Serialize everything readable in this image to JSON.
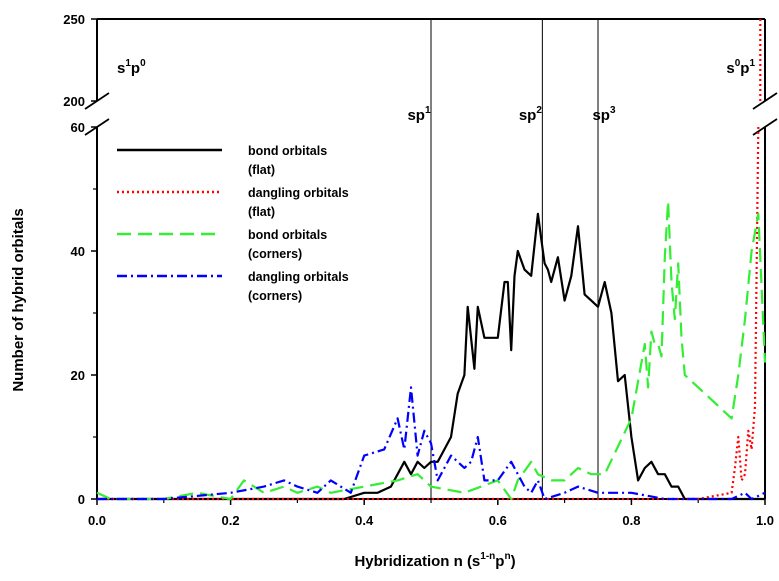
{
  "chart_data": {
    "type": "line",
    "title": "",
    "xlabel": {
      "base": "Hybridization n (s",
      "sup1": "1-n",
      "mid": "p",
      "sup2": "n",
      "end": ")"
    },
    "ylabel": "Number of hybrid orbitals",
    "xlim": [
      0,
      1
    ],
    "ylim_lower": [
      0,
      60
    ],
    "ylim_upper": [
      200,
      250
    ],
    "axis_break": true,
    "x_ticks": [
      "0.0",
      "0.2",
      "0.4",
      "0.6",
      "0.8",
      "1.0"
    ],
    "y_ticks_lower": [
      "0",
      "20",
      "40",
      "60"
    ],
    "y_ticks_upper": [
      "200",
      "250"
    ],
    "legend_position": "upper-left",
    "annotations": [
      {
        "name": "s1p0",
        "base1": "s",
        "sup1": "1",
        "base2": "p",
        "sup2": "0"
      },
      {
        "name": "s0p1",
        "base1": "s",
        "sup1": "0",
        "base2": "p",
        "sup2": "1"
      },
      {
        "name": "sp1",
        "base1": "sp",
        "sup1": "1"
      },
      {
        "name": "sp2",
        "base1": "sp",
        "sup1": "2"
      },
      {
        "name": "sp3",
        "base1": "sp",
        "sup1": "3"
      }
    ],
    "vertical_lines": [
      0.5,
      0.6667,
      0.75
    ],
    "series": [
      {
        "name": "bond orbitals (flat)",
        "label_line1": "bond orbitals",
        "label_line2": "(flat)",
        "color": "#000000",
        "dash": "solid",
        "x": [
          0,
          0.1,
          0.2,
          0.3,
          0.37,
          0.4,
          0.42,
          0.44,
          0.46,
          0.47,
          0.48,
          0.49,
          0.5,
          0.51,
          0.52,
          0.53,
          0.54,
          0.55,
          0.555,
          0.565,
          0.57,
          0.58,
          0.59,
          0.6,
          0.61,
          0.615,
          0.62,
          0.625,
          0.63,
          0.64,
          0.65,
          0.66,
          0.665,
          0.67,
          0.675,
          0.68,
          0.69,
          0.7,
          0.71,
          0.72,
          0.73,
          0.74,
          0.75,
          0.76,
          0.77,
          0.78,
          0.79,
          0.8,
          0.81,
          0.82,
          0.83,
          0.84,
          0.85,
          0.86,
          0.87,
          0.88,
          0.89,
          0.9,
          0.91,
          1.0
        ],
        "y": [
          0,
          0,
          0,
          0,
          0,
          1,
          1,
          2,
          6,
          4,
          6,
          5,
          6,
          6,
          8,
          10,
          17,
          20,
          31,
          21,
          31,
          26,
          26,
          26,
          35,
          35,
          24,
          36,
          40,
          37,
          36,
          46,
          42,
          38,
          37,
          35,
          39,
          32,
          36,
          44,
          33,
          32,
          31,
          35,
          30,
          19,
          20,
          10,
          3,
          5,
          6,
          4,
          4,
          2,
          2,
          0,
          0,
          0,
          0,
          0
        ]
      },
      {
        "name": "dangling orbitals (flat)",
        "label_line1": "dangling orbitals",
        "label_line2": "(flat)",
        "color": "#ff0000",
        "dash": "dotted",
        "x": [
          0,
          0.9,
          0.95,
          0.955,
          0.96,
          0.965,
          0.97,
          0.975,
          0.98,
          0.985,
          0.99
        ],
        "y": [
          0,
          0,
          1,
          5,
          10,
          3,
          4,
          11,
          8,
          15,
          60
        ]
      },
      {
        "name": "bond orbitals (corners)",
        "label_line1": "bond orbitals",
        "label_line2": "(corners)",
        "color": "#33ee33",
        "dash": "dashed",
        "x": [
          0,
          0.02,
          0.05,
          0.1,
          0.15,
          0.2,
          0.22,
          0.25,
          0.28,
          0.3,
          0.33,
          0.35,
          0.4,
          0.45,
          0.48,
          0.5,
          0.55,
          0.6,
          0.62,
          0.63,
          0.65,
          0.66,
          0.68,
          0.7,
          0.72,
          0.74,
          0.76,
          0.8,
          0.81,
          0.82,
          0.825,
          0.83,
          0.835,
          0.84,
          0.845,
          0.85,
          0.855,
          0.86,
          0.865,
          0.87,
          0.875,
          0.88,
          0.9,
          0.92,
          0.95,
          0.96,
          0.97,
          0.98,
          0.99,
          1.0,
          1.0
        ],
        "y": [
          1,
          0,
          0,
          0,
          1,
          0,
          3,
          1,
          2,
          1,
          2,
          1,
          2,
          3,
          4,
          2,
          1,
          3,
          0,
          3,
          6,
          4,
          3,
          3,
          5,
          4,
          4,
          13,
          19,
          25,
          18,
          27,
          25,
          25,
          23,
          39,
          48,
          35,
          29,
          38,
          26,
          20,
          18,
          16,
          13,
          20,
          29,
          40,
          46,
          22,
          22
        ]
      },
      {
        "name": "dangling orbitals (corners)",
        "label_line1": "dangling orbitals",
        "label_line2": "(corners)",
        "color": "#0000ff",
        "dash": "dashdot",
        "x": [
          0,
          0.05,
          0.1,
          0.2,
          0.25,
          0.28,
          0.3,
          0.33,
          0.35,
          0.38,
          0.4,
          0.43,
          0.45,
          0.46,
          0.47,
          0.48,
          0.49,
          0.5,
          0.51,
          0.52,
          0.53,
          0.55,
          0.56,
          0.57,
          0.58,
          0.6,
          0.62,
          0.64,
          0.65,
          0.66,
          0.67,
          0.7,
          0.72,
          0.75,
          0.8,
          0.85,
          0.9,
          0.95,
          0.97,
          0.98,
          1.0
        ],
        "y": [
          0,
          0,
          0,
          1,
          2,
          3,
          2,
          1,
          3,
          1,
          7,
          8,
          13,
          8,
          18,
          7,
          11,
          9,
          3,
          5,
          7,
          5,
          6,
          10,
          3,
          3,
          6,
          2,
          1,
          3,
          0,
          1,
          2,
          1,
          1,
          0,
          0,
          0,
          1,
          0,
          1
        ]
      },
      {
        "name": "dangling orbitals (flat) upper",
        "color": "#ff0000",
        "dash": "dotted",
        "x": [
          0.993,
          0.993
        ],
        "y": [
          200,
          250
        ]
      }
    ]
  }
}
